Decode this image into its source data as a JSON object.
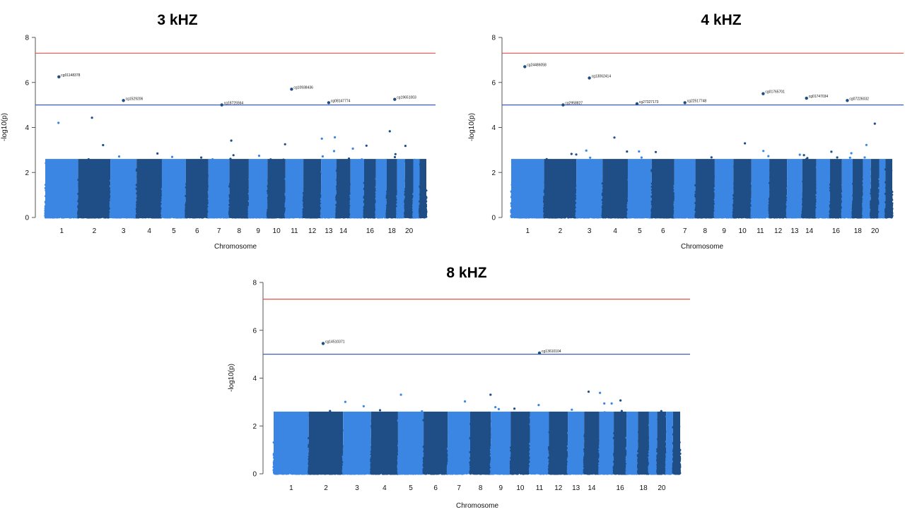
{
  "figure": {
    "colors": {
      "light": "#3b86e3",
      "dark": "#1f4d86",
      "genome_wide_line": "#e0514a",
      "suggestive_line": "#3a5fbf"
    }
  },
  "chart_data": [
    {
      "type": "scatter",
      "title": "3 kHZ",
      "xlabel": "Chromosome",
      "ylabel": "-log10(p)",
      "ylim": [
        0,
        8
      ],
      "yticks": [
        0,
        2,
        4,
        6,
        8
      ],
      "genome_wide_threshold": 7.3,
      "suggestive_threshold": 5.0,
      "grid": false,
      "chromosome_tick_labels": [
        "1",
        "2",
        "3",
        "4",
        "5",
        "6",
        "7",
        "8",
        "9",
        "10",
        "11",
        "12",
        "13",
        "14",
        "16",
        "18",
        "20"
      ],
      "top_hits": [
        {
          "label": "cg01148378",
          "chromosome": 1,
          "neg_log10_p": 6.25
        },
        {
          "label": "cg1529206",
          "chromosome": 3,
          "neg_log10_p": 5.2
        },
        {
          "label": "cg18725564",
          "chromosome": 7,
          "neg_log10_p": 5.0
        },
        {
          "label": "cg10938436",
          "chromosome": 11,
          "neg_log10_p": 5.7
        },
        {
          "label": "cg08147774",
          "chromosome": 13,
          "neg_log10_p": 5.1
        },
        {
          "label": "cg19651003",
          "chromosome": 18,
          "neg_log10_p": 5.25
        }
      ]
    },
    {
      "type": "scatter",
      "title": "4 kHZ",
      "xlabel": "Chromosome",
      "ylabel": "-log10(p)",
      "ylim": [
        0,
        8
      ],
      "yticks": [
        0,
        2,
        4,
        6,
        8
      ],
      "genome_wide_threshold": 7.3,
      "suggestive_threshold": 5.0,
      "grid": false,
      "chromosome_tick_labels": [
        "1",
        "2",
        "3",
        "4",
        "5",
        "6",
        "7",
        "8",
        "9",
        "10",
        "11",
        "12",
        "13",
        "14",
        "16",
        "18",
        "20"
      ],
      "top_hits": [
        {
          "label": "cg24486058",
          "chromosome": 1,
          "neg_log10_p": 6.7
        },
        {
          "label": "cg13062414",
          "chromosome": 3,
          "neg_log10_p": 6.2
        },
        {
          "label": "cg2958827",
          "chromosome": 2,
          "neg_log10_p": 5.0
        },
        {
          "label": "cg27327173",
          "chromosome": 5,
          "neg_log10_p": 5.05
        },
        {
          "label": "cg22517748",
          "chromosome": 7,
          "neg_log10_p": 5.1
        },
        {
          "label": "cg01765701",
          "chromosome": 11,
          "neg_log10_p": 5.5
        },
        {
          "label": "cg01747034",
          "chromosome": 14,
          "neg_log10_p": 5.3
        },
        {
          "label": "cg07226032",
          "chromosome": 17,
          "neg_log10_p": 5.2
        }
      ]
    },
    {
      "type": "scatter",
      "title": "8 kHZ",
      "xlabel": "Chromosome",
      "ylabel": "-log10(p)",
      "ylim": [
        0,
        8
      ],
      "yticks": [
        0,
        2,
        4,
        6,
        8
      ],
      "genome_wide_threshold": 7.3,
      "suggestive_threshold": 5.0,
      "grid": false,
      "chromosome_tick_labels": [
        "1",
        "2",
        "3",
        "4",
        "5",
        "6",
        "7",
        "8",
        "9",
        "10",
        "11",
        "12",
        "13",
        "14",
        "16",
        "18",
        "20"
      ],
      "top_hits": [
        {
          "label": "cg14510371",
          "chromosome": 2,
          "neg_log10_p": 5.45
        },
        {
          "label": "cg13610104",
          "chromosome": 11,
          "neg_log10_p": 5.05
        }
      ]
    }
  ]
}
